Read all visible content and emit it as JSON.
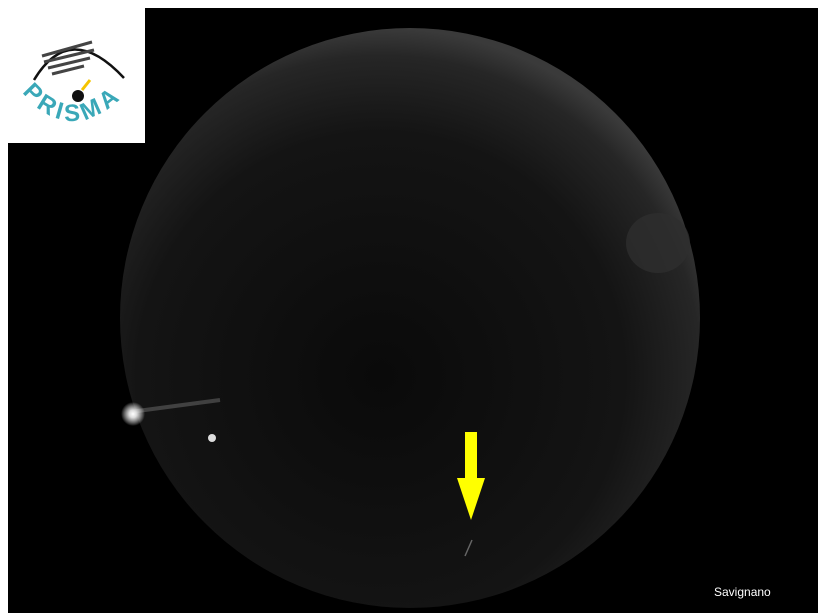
{
  "logo": {
    "text": "PRISMA"
  },
  "location_label": "Savignano"
}
